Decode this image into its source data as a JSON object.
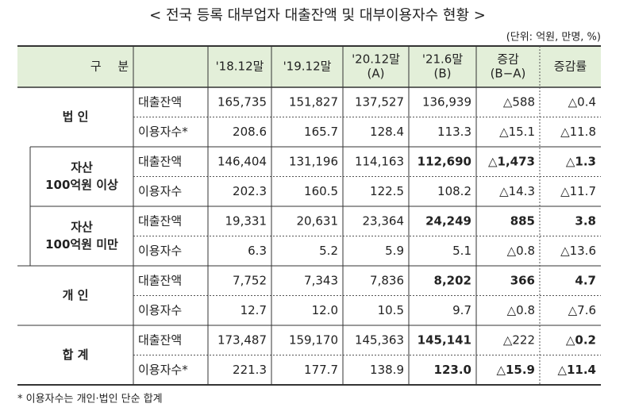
{
  "title": "< 전국 등록 대부업자 대출잔액 및 대부이용자수 현황 >",
  "unit": "(단위: 억원, 만명, %)",
  "headers": [
    [
      "구 분"
    ],
    [
      "'18.12말"
    ],
    [
      "'19.12말"
    ],
    [
      "'20.12말",
      "(A)"
    ],
    [
      "'21.6말",
      "(B)"
    ],
    [
      "증감",
      "(B−A)"
    ],
    [
      "증감률"
    ]
  ],
  "groups": [
    {
      "label": [
        "법 인"
      ],
      "rows": [
        {
          "label": "대출잔액",
          "cells": [
            "165,735",
            "151,827",
            "137,527",
            "136,939",
            "△588",
            "△0.4"
          ]
        },
        {
          "label": "이용자수*",
          "cells": [
            "208.6",
            "165.7",
            "128.4",
            "113.3",
            "△15.1",
            "△11.8"
          ]
        }
      ]
    },
    {
      "label": [
        "자산",
        "100억원 이상"
      ],
      "rows": [
        {
          "label": "대출잔액",
          "cells": [
            "146,404",
            "131,196",
            "114,163",
            "112,690",
            "△1,473",
            "△1.3"
          ]
        },
        {
          "label": "이용자수",
          "cells": [
            "202.3",
            "160.5",
            "122.5",
            "108.2",
            "△14.3",
            "△11.7"
          ]
        }
      ]
    },
    {
      "label": [
        "자산",
        "100억원 미만"
      ],
      "rows": [
        {
          "label": "대출잔액",
          "cells": [
            "19,331",
            "20,631",
            "23,364",
            "24,249",
            "885",
            "3.8"
          ]
        },
        {
          "label": "이용자수",
          "cells": [
            "6.3",
            "5.2",
            "5.9",
            "5.1",
            "△0.8",
            "△13.6"
          ]
        }
      ]
    },
    {
      "label": [
        "개 인"
      ],
      "rows": [
        {
          "label": "대출잔액",
          "cells": [
            "7,752",
            "7,343",
            "7,836",
            "8,202",
            "366",
            "4.7"
          ]
        },
        {
          "label": "이용자수",
          "cells": [
            "12.7",
            "12.0",
            "10.5",
            "9.7",
            "△0.8",
            "△7.6"
          ]
        }
      ]
    },
    {
      "label": [
        "합 계"
      ],
      "rows": [
        {
          "label": "대출잔액",
          "cells": [
            "173,487",
            "159,170",
            "145,363",
            "145,141",
            "△222",
            "△0.2"
          ]
        },
        {
          "label": "이용자수*",
          "cells": [
            "221.3",
            "177.7",
            "138.9",
            "123.0",
            "△15.9",
            "△11.4"
          ]
        }
      ]
    }
  ],
  "footnote": "* 이용자수는 개인·법인 단순 합계"
}
